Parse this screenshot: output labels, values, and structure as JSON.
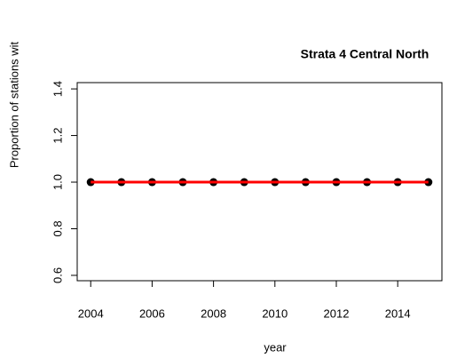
{
  "chart_data": {
    "type": "line",
    "title": "Strata 4 Central North",
    "x_label": "year",
    "y_label": "Proportion of stations wit",
    "x": [
      2004,
      2005,
      2006,
      2007,
      2008,
      2009,
      2010,
      2011,
      2012,
      2013,
      2014,
      2015
    ],
    "series": [
      {
        "color": "#000000",
        "marker": true,
        "line": false,
        "values": [
          1,
          1,
          1,
          1,
          1,
          1,
          1,
          1,
          1,
          1,
          1,
          1
        ]
      },
      {
        "color": "#ff0000",
        "marker": false,
        "line": true,
        "values": [
          1,
          1,
          1,
          1,
          1,
          1,
          1,
          1,
          1,
          1,
          1,
          1
        ]
      }
    ],
    "xlim": [
      2003.56,
      2015.44
    ],
    "ylim": [
      0.577,
      1.427
    ],
    "xticks": [
      2004,
      2006,
      2008,
      2010,
      2012,
      2014
    ],
    "yticks": [
      0.6,
      0.8,
      {
        "value": 1,
        "label": "1.0"
      },
      1.2,
      1.4
    ],
    "grid": false
  }
}
